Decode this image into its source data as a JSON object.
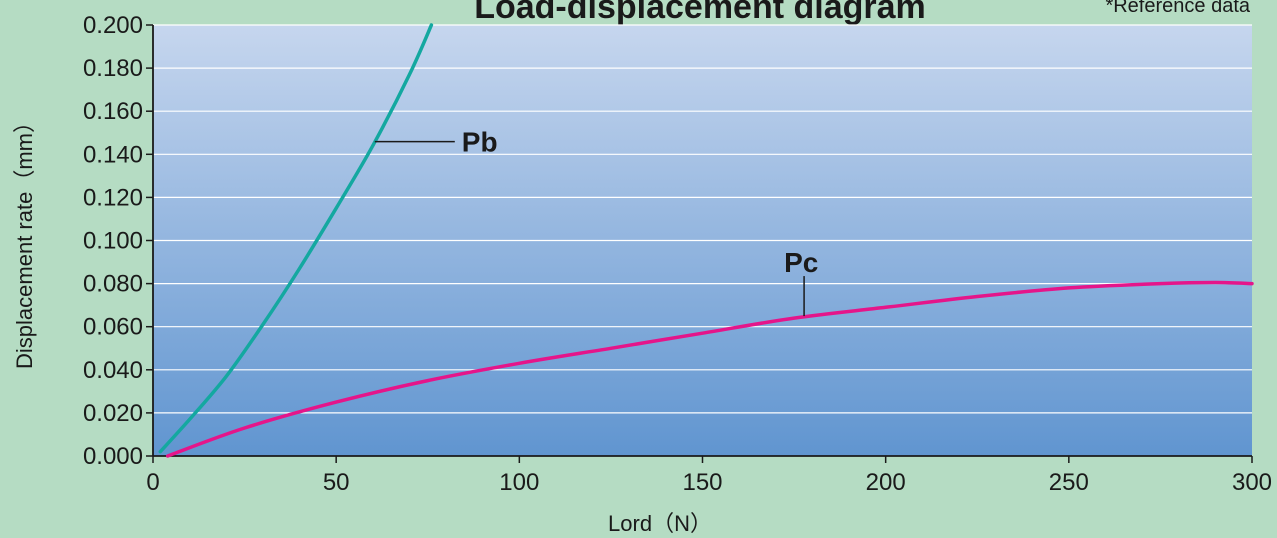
{
  "chart_data": {
    "type": "line",
    "title": "Load-displacement diagram",
    "note": "*Reference data",
    "xlabel": "Lord（N）",
    "ylabel": "Displacement rate（mm）",
    "xlim": [
      0,
      300
    ],
    "ylim": [
      0,
      0.2
    ],
    "xticks": [
      "0",
      "50",
      "100",
      "150",
      "200",
      "250",
      "300"
    ],
    "yticks": [
      "0.000",
      "0.020",
      "0.040",
      "0.060",
      "0.080",
      "0.100",
      "0.120",
      "0.140",
      "0.160",
      "0.180",
      "0.200"
    ],
    "grid": true,
    "series": [
      {
        "name": "Pb",
        "color": "#14a8a0",
        "x": [
          2,
          10,
          20,
          30,
          40,
          50,
          60,
          70,
          76
        ],
        "y": [
          0.002,
          0.017,
          0.037,
          0.061,
          0.087,
          0.115,
          0.144,
          0.177,
          0.2
        ]
      },
      {
        "name": "Pc",
        "color": "#e5158a",
        "x": [
          4,
          25,
          50,
          75,
          100,
          125,
          150,
          175,
          200,
          225,
          250,
          275,
          290,
          300
        ],
        "y": [
          0.0,
          0.013,
          0.025,
          0.035,
          0.043,
          0.05,
          0.057,
          0.064,
          0.069,
          0.074,
          0.078,
          0.08,
          0.0805,
          0.08
        ]
      }
    ]
  }
}
